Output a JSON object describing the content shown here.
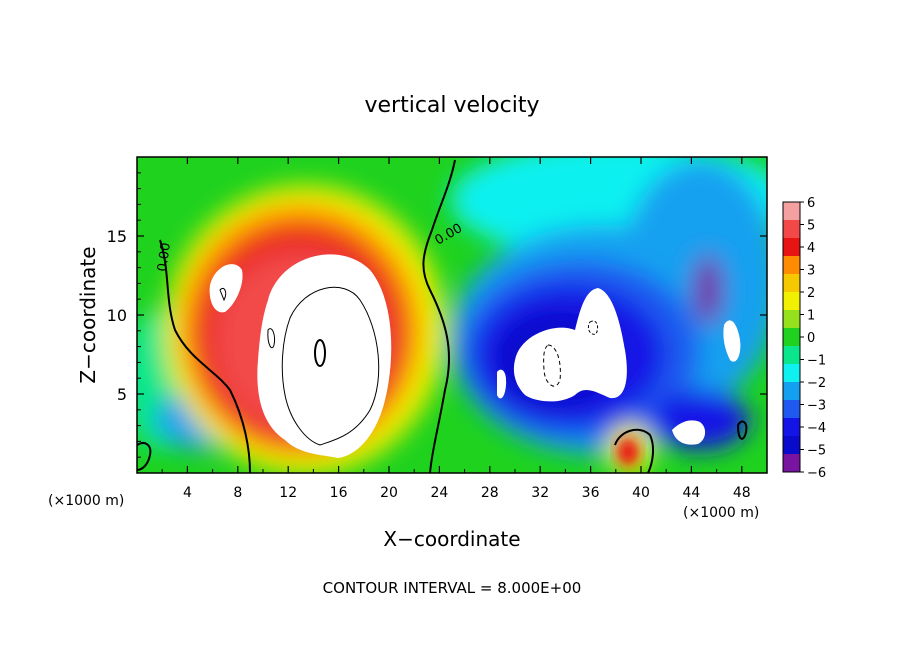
{
  "chart_data": {
    "type": "heatmap",
    "title": "vertical velocity",
    "xlabel": "X−coordinate",
    "ylabel": "Z−coordinate",
    "x_unit": "(×1000 m)",
    "y_unit": "(×1000 m)",
    "xlim": [
      0,
      50
    ],
    "ylim": [
      0,
      20
    ],
    "x_ticks": [
      4,
      8,
      12,
      16,
      20,
      24,
      28,
      32,
      36,
      40,
      44,
      48
    ],
    "y_ticks": [
      5,
      10,
      15
    ],
    "colorbar": {
      "levels": [
        6,
        5,
        4,
        3,
        2,
        1,
        0,
        -1,
        -2,
        -3,
        -4,
        -5,
        -6
      ],
      "labels": [
        "6",
        "5",
        "4",
        "3",
        "2",
        "1",
        "0",
        "−1",
        "−2",
        "−3",
        "−4",
        "−5",
        "−6"
      ],
      "colors": [
        "#f4a0a0",
        "#f24848",
        "#e81414",
        "#ff8c00",
        "#f5c800",
        "#f0f000",
        "#96e11e",
        "#1ed21e",
        "#0ae68c",
        "#0ff0f0",
        "#14a0f0",
        "#1e5af0",
        "#1414e6",
        "#0a0acd",
        "#7814a0"
      ]
    },
    "contour_labels": [
      "0.00",
      "0.00"
    ],
    "footer": "CONTOUR INTERVAL = 8.000E+00"
  }
}
